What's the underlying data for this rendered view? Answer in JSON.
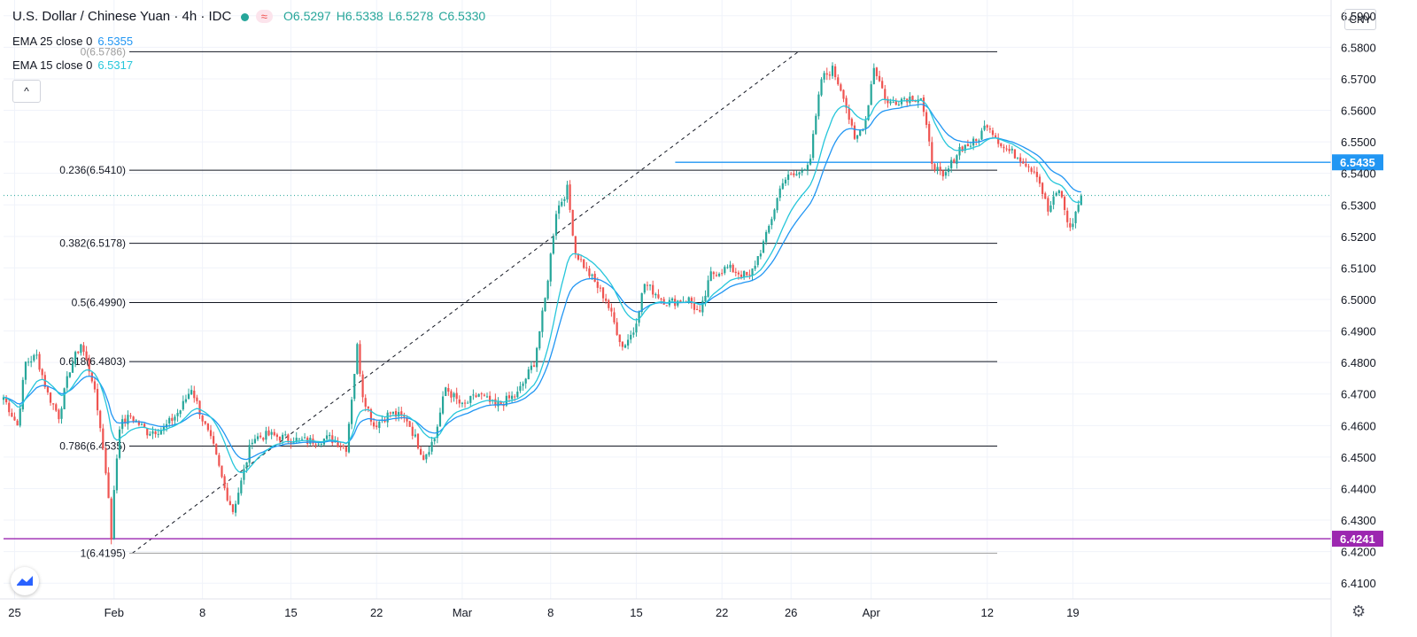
{
  "header": {
    "symbol_title": "U.S. Dollar / Chinese Yuan · 4h · IDC",
    "indicator_pill": "≈",
    "ohlc": {
      "o": "O6.5297",
      "h": "H6.5338",
      "l": "L6.5278",
      "c": "C6.5330"
    },
    "indicators": [
      {
        "label": "EMA 25 close 0",
        "value": "6.5355"
      },
      {
        "label": "EMA 15 close 0",
        "value": "6.5317"
      }
    ],
    "collapse_label": "^"
  },
  "currency": "CNY",
  "colors": {
    "up": "#26a69a",
    "down": "#ef5350",
    "ema25": "#2196f3",
    "ema15": "#26c6da",
    "fib": "#131722",
    "hline_blue": "#2196f3",
    "hline_purple": "#9c27b0"
  },
  "chart_data": {
    "type": "candlestick",
    "title": "U.S. Dollar / Chinese Yuan · 4h · IDC",
    "timeframe": "4h",
    "y_axis": {
      "ylim": [
        6.405,
        6.595
      ],
      "ticks": [
        "6.5900",
        "6.5800",
        "6.5700",
        "6.5600",
        "6.5500",
        "6.5400",
        "6.5300",
        "6.5200",
        "6.5100",
        "6.5000",
        "6.4900",
        "6.4800",
        "6.4700",
        "6.4600",
        "6.4500",
        "6.4400",
        "6.4300",
        "6.4200",
        "6.4100"
      ]
    },
    "x_axis": {
      "ticks": [
        {
          "label": "25",
          "bar": 4
        },
        {
          "label": "Feb",
          "bar": 40
        },
        {
          "label": "8",
          "bar": 72
        },
        {
          "label": "15",
          "bar": 104
        },
        {
          "label": "22",
          "bar": 135
        },
        {
          "label": "Mar",
          "bar": 166
        },
        {
          "label": "8",
          "bar": 198
        },
        {
          "label": "15",
          "bar": 229
        },
        {
          "label": "22",
          "bar": 260
        },
        {
          "label": "26",
          "bar": 285
        },
        {
          "label": "Apr",
          "bar": 314
        },
        {
          "label": "12",
          "bar": 356
        },
        {
          "label": "19",
          "bar": 387
        }
      ]
    },
    "bar_count": 400,
    "anchors": [
      {
        "bar": 0,
        "price": 6.469
      },
      {
        "bar": 5,
        "price": 6.46
      },
      {
        "bar": 8,
        "price": 6.48
      },
      {
        "bar": 12,
        "price": 6.482
      },
      {
        "bar": 16,
        "price": 6.47
      },
      {
        "bar": 20,
        "price": 6.463
      },
      {
        "bar": 24,
        "price": 6.478
      },
      {
        "bar": 28,
        "price": 6.486
      },
      {
        "bar": 32,
        "price": 6.475
      },
      {
        "bar": 35,
        "price": 6.46
      },
      {
        "bar": 38,
        "price": 6.438
      },
      {
        "bar": 39,
        "price": 6.423
      },
      {
        "bar": 40,
        "price": 6.44
      },
      {
        "bar": 42,
        "price": 6.46
      },
      {
        "bar": 46,
        "price": 6.463
      },
      {
        "bar": 52,
        "price": 6.458
      },
      {
        "bar": 58,
        "price": 6.459
      },
      {
        "bar": 64,
        "price": 6.465
      },
      {
        "bar": 68,
        "price": 6.472
      },
      {
        "bar": 72,
        "price": 6.462
      },
      {
        "bar": 76,
        "price": 6.453
      },
      {
        "bar": 80,
        "price": 6.44
      },
      {
        "bar": 83,
        "price": 6.433
      },
      {
        "bar": 86,
        "price": 6.442
      },
      {
        "bar": 90,
        "price": 6.456
      },
      {
        "bar": 96,
        "price": 6.457
      },
      {
        "bar": 102,
        "price": 6.456
      },
      {
        "bar": 110,
        "price": 6.455
      },
      {
        "bar": 118,
        "price": 6.456
      },
      {
        "bar": 124,
        "price": 6.453
      },
      {
        "bar": 128,
        "price": 6.485
      },
      {
        "bar": 130,
        "price": 6.47
      },
      {
        "bar": 134,
        "price": 6.46
      },
      {
        "bar": 140,
        "price": 6.464
      },
      {
        "bar": 146,
        "price": 6.462
      },
      {
        "bar": 152,
        "price": 6.45
      },
      {
        "bar": 156,
        "price": 6.456
      },
      {
        "bar": 160,
        "price": 6.472
      },
      {
        "bar": 166,
        "price": 6.466
      },
      {
        "bar": 172,
        "price": 6.47
      },
      {
        "bar": 178,
        "price": 6.466
      },
      {
        "bar": 186,
        "price": 6.47
      },
      {
        "bar": 192,
        "price": 6.48
      },
      {
        "bar": 196,
        "price": 6.5
      },
      {
        "bar": 200,
        "price": 6.528
      },
      {
        "bar": 204,
        "price": 6.535
      },
      {
        "bar": 207,
        "price": 6.515
      },
      {
        "bar": 212,
        "price": 6.508
      },
      {
        "bar": 218,
        "price": 6.5
      },
      {
        "bar": 224,
        "price": 6.485
      },
      {
        "bar": 228,
        "price": 6.49
      },
      {
        "bar": 232,
        "price": 6.505
      },
      {
        "bar": 240,
        "price": 6.499
      },
      {
        "bar": 248,
        "price": 6.5
      },
      {
        "bar": 252,
        "price": 6.495
      },
      {
        "bar": 256,
        "price": 6.508
      },
      {
        "bar": 262,
        "price": 6.51
      },
      {
        "bar": 270,
        "price": 6.507
      },
      {
        "bar": 276,
        "price": 6.52
      },
      {
        "bar": 282,
        "price": 6.538
      },
      {
        "bar": 288,
        "price": 6.54
      },
      {
        "bar": 292,
        "price": 6.545
      },
      {
        "bar": 296,
        "price": 6.57
      },
      {
        "bar": 300,
        "price": 6.573
      },
      {
        "bar": 304,
        "price": 6.565
      },
      {
        "bar": 308,
        "price": 6.55
      },
      {
        "bar": 312,
        "price": 6.557
      },
      {
        "bar": 315,
        "price": 6.574
      },
      {
        "bar": 320,
        "price": 6.562
      },
      {
        "bar": 326,
        "price": 6.564
      },
      {
        "bar": 332,
        "price": 6.564
      },
      {
        "bar": 336,
        "price": 6.544
      },
      {
        "bar": 340,
        "price": 6.538
      },
      {
        "bar": 346,
        "price": 6.548
      },
      {
        "bar": 352,
        "price": 6.55
      },
      {
        "bar": 356,
        "price": 6.556
      },
      {
        "bar": 362,
        "price": 6.548
      },
      {
        "bar": 368,
        "price": 6.545
      },
      {
        "bar": 374,
        "price": 6.54
      },
      {
        "bar": 378,
        "price": 6.528
      },
      {
        "bar": 382,
        "price": 6.535
      },
      {
        "bar": 386,
        "price": 6.522
      },
      {
        "bar": 390,
        "price": 6.533
      }
    ],
    "last_bar": 390,
    "last_close": 6.533,
    "ema_periods": [
      25,
      15
    ],
    "fibonacci": {
      "start": {
        "bar": 37,
        "price": 6.4195
      },
      "end": {
        "bar": 287,
        "price": 6.5786
      },
      "levels": [
        {
          "label": "0(6.5786)",
          "price": 6.5786
        },
        {
          "label": "0.236(6.5410)",
          "price": 6.541
        },
        {
          "label": "0.382(6.5178)",
          "price": 6.5178
        },
        {
          "label": "0.5(6.4990)",
          "price": 6.499
        },
        {
          "label": "0.618(6.4803)",
          "price": 6.4803
        },
        {
          "label": "0.786(6.4535)",
          "price": 6.4535
        },
        {
          "label": "1(6.4195)",
          "price": 6.4195
        }
      ]
    },
    "horizontal_lines": [
      {
        "price": 6.5435,
        "label": "6.5435",
        "color": "#2196f3",
        "from_bar": 195
      },
      {
        "price": 6.4241,
        "label": "6.4241",
        "color": "#9c27b0",
        "from_bar": 0
      }
    ],
    "last_price_line": 6.533,
    "grid": true
  }
}
